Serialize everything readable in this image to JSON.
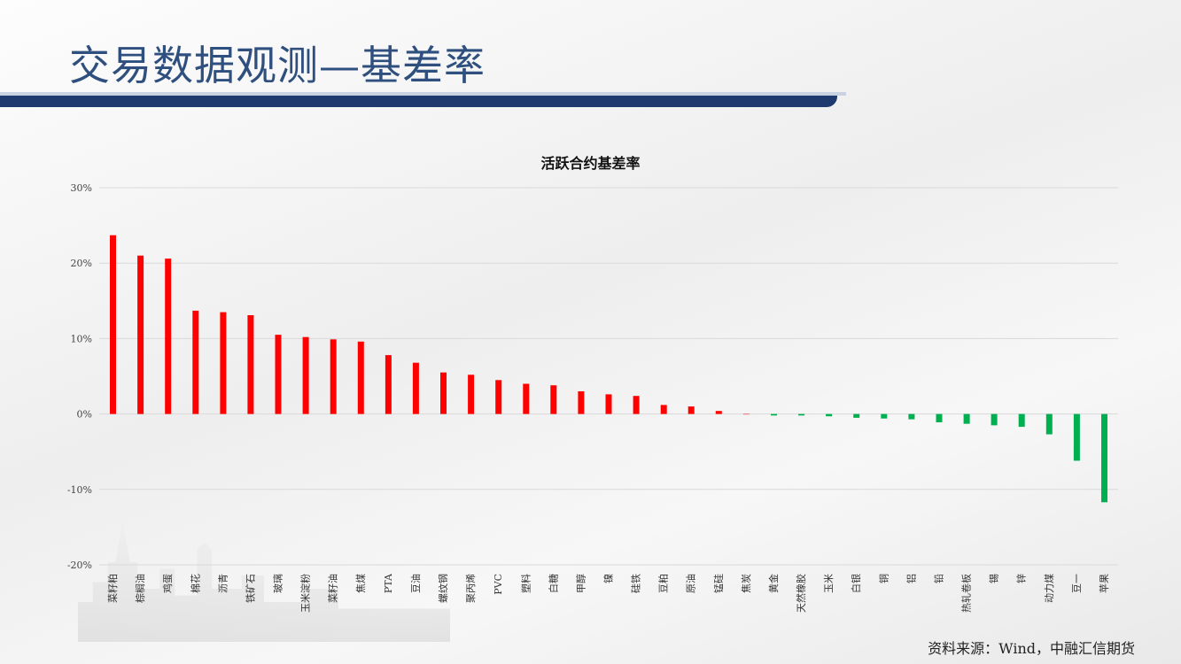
{
  "page": {
    "title": "交易数据观测—基差率",
    "source": "资料来源：Wind，中融汇信期货"
  },
  "colors": {
    "positive": "#ff0000",
    "negative": "#00b050",
    "gridline": "#d9d9d9",
    "title_text": "#2f4f7f",
    "title_rule": "#1f3a6e"
  },
  "chart_data": {
    "type": "bar",
    "title": "活跃合约基差率",
    "xlabel": "",
    "ylabel": "",
    "ylim": [
      -0.2,
      0.3
    ],
    "yticks": [
      "30%",
      "20%",
      "10%",
      "0%",
      "-10%",
      "-20%"
    ],
    "grid": true,
    "legend": "none",
    "categories": [
      "菜籽粕",
      "棕榈油",
      "鸡蛋",
      "棉花",
      "沥青",
      "铁矿石",
      "玻璃",
      "玉米淀粉",
      "菜籽油",
      "焦煤",
      "PTA",
      "豆油",
      "螺纹钢",
      "聚丙烯",
      "PVC",
      "塑料",
      "白糖",
      "甲醇",
      "镍",
      "硅铁",
      "豆粕",
      "原油",
      "锰硅",
      "焦炭",
      "黄金",
      "天然橡胶",
      "玉米",
      "白银",
      "铜",
      "铝",
      "铅",
      "热轧卷板",
      "锡",
      "锌",
      "动力煤",
      "豆一",
      "苹果"
    ],
    "values": [
      0.237,
      0.21,
      0.206,
      0.137,
      0.135,
      0.131,
      0.105,
      0.102,
      0.099,
      0.096,
      0.078,
      0.068,
      0.055,
      0.052,
      0.045,
      0.04,
      0.038,
      0.03,
      0.026,
      0.024,
      0.012,
      0.01,
      0.004,
      0.0,
      -0.002,
      -0.002,
      -0.003,
      -0.005,
      -0.006,
      -0.007,
      -0.011,
      -0.013,
      -0.015,
      -0.017,
      -0.027,
      -0.062,
      -0.117
    ]
  }
}
